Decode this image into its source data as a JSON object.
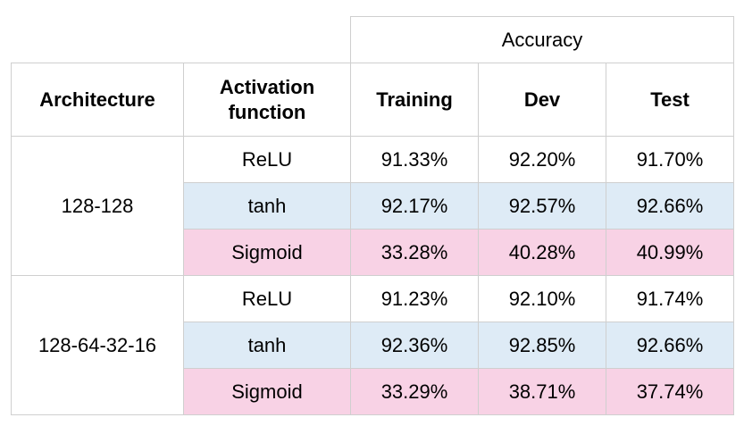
{
  "header": {
    "group_label": "Accuracy",
    "architecture": "Architecture",
    "activation_line1": "Activation",
    "activation_line2": "function",
    "training": "Training",
    "dev": "Dev",
    "test": "Test"
  },
  "rows": [
    {
      "architecture": "128-128",
      "activation": "ReLU",
      "training": "91.33%",
      "dev": "92.20%",
      "test": "91.70%",
      "color": "#ffffff"
    },
    {
      "architecture": "128-128",
      "activation": "tanh",
      "training": "92.17%",
      "dev": "92.57%",
      "test": "92.66%",
      "color": "#deebf6"
    },
    {
      "architecture": "128-128",
      "activation": "Sigmoid",
      "training": "33.28%",
      "dev": "40.28%",
      "test": "40.99%",
      "color": "#f8d2e5"
    },
    {
      "architecture": "128-64-32-16",
      "activation": "ReLU",
      "training": "91.23%",
      "dev": "92.10%",
      "test": "91.74%",
      "color": "#ffffff"
    },
    {
      "architecture": "128-64-32-16",
      "activation": "tanh",
      "training": "92.36%",
      "dev": "92.85%",
      "test": "92.66%",
      "color": "#deebf6"
    },
    {
      "architecture": "128-64-32-16",
      "activation": "Sigmoid",
      "training": "33.29%",
      "dev": "38.71%",
      "test": "37.74%",
      "color": "#f8d2e5"
    }
  ]
}
